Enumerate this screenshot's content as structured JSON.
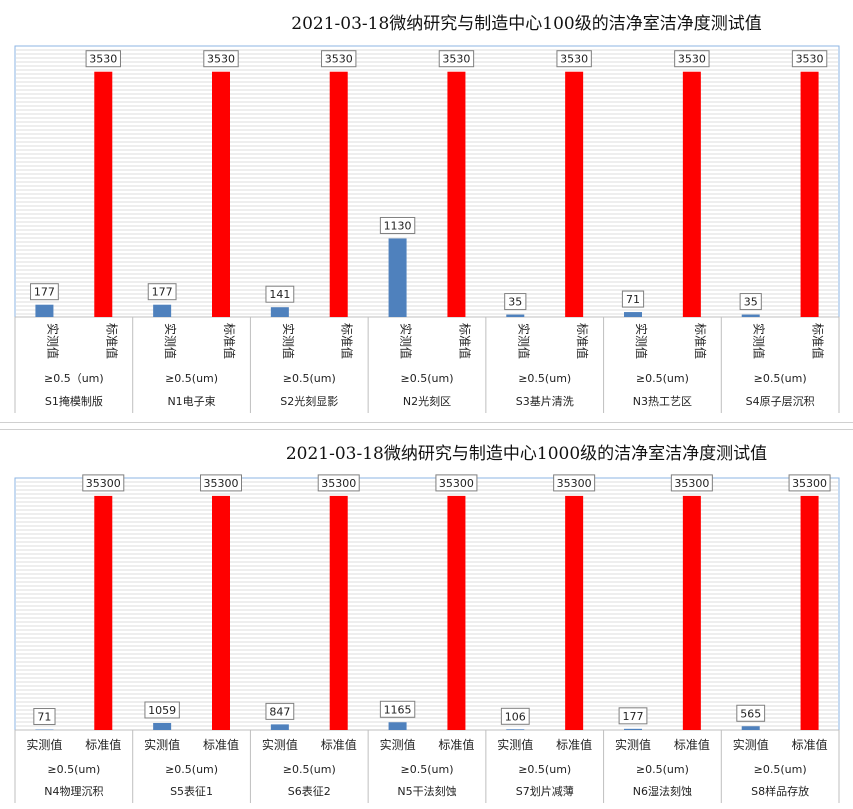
{
  "chart_data": [
    {
      "type": "bar",
      "title": "2021-03-18微纳研究与制造中心100级的洁净室洁净度测试值",
      "series_labels": [
        "实测值",
        "标准值"
      ],
      "groups": [
        {
          "subgroup": "≥0.5（um)",
          "name": "S1掩模制版",
          "measured": 177,
          "standard": 3530
        },
        {
          "subgroup": "≥0.5(um)",
          "name": "N1电子束",
          "measured": 177,
          "standard": 3530
        },
        {
          "subgroup": "≥0.5(um)",
          "name": "S2光刻显影",
          "measured": 141,
          "standard": 3530
        },
        {
          "subgroup": "≥0.5(um)",
          "name": "N2光刻区",
          "measured": 1130,
          "standard": 3530
        },
        {
          "subgroup": "≥0.5(um)",
          "name": "S3基片清洗",
          "measured": 35,
          "standard": 3530
        },
        {
          "subgroup": "≥0.5(um)",
          "name": "N3热工艺区",
          "measured": 71,
          "standard": 3530
        },
        {
          "subgroup": "≥0.5(um)",
          "name": "S4原子层沉积",
          "measured": 35,
          "standard": 3530
        }
      ],
      "ylim": [
        0,
        3900
      ],
      "label_orientation": "vertical",
      "colors": {
        "measured": "#4f81bd",
        "standard": "#ff0000"
      }
    },
    {
      "type": "bar",
      "title": "2021-03-18微纳研究与制造中心1000级的洁净室洁净度测试值",
      "series_labels": [
        "实测值",
        "标准值"
      ],
      "groups": [
        {
          "subgroup": "≥0.5(um)",
          "name": "N4物理沉积",
          "measured": 71,
          "standard": 35300
        },
        {
          "subgroup": "≥0.5(um)",
          "name": "S5表征1",
          "measured": 1059,
          "standard": 35300
        },
        {
          "subgroup": "≥0.5(um)",
          "name": "S6表征2",
          "measured": 847,
          "standard": 35300
        },
        {
          "subgroup": "≥0.5(um)",
          "name": "N5干法刻蚀",
          "measured": 1165,
          "standard": 35300
        },
        {
          "subgroup": "≥0.5(um)",
          "name": "S7划片减薄",
          "measured": 106,
          "standard": 35300
        },
        {
          "subgroup": "≥0.5(um)",
          "name": "N6湿法刻蚀",
          "measured": 177,
          "standard": 35300
        },
        {
          "subgroup": "≥0.5(um)",
          "name": "S8样品存放",
          "measured": 565,
          "standard": 35300
        }
      ],
      "ylim": [
        0,
        38000
      ],
      "label_orientation": "horizontal",
      "colors": {
        "measured": "#4f81bd",
        "standard": "#ff0000"
      }
    }
  ]
}
